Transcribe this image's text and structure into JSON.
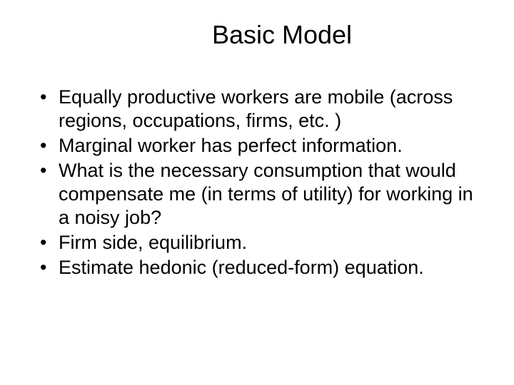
{
  "slide": {
    "title": "Basic Model",
    "bullets": [
      "Equally productive workers are mobile (across regions, occupations, firms, etc. )",
      "Marginal worker has perfect information.",
      "What is the necessary consumption that would compensate me (in terms of utility) for working in a noisy job?",
      "Firm side, equilibrium.",
      "Estimate hedonic (reduced-form) equation."
    ],
    "title_fontsize": 36,
    "body_fontsize": 27,
    "text_color": "#000000",
    "background_color": "#ffffff"
  }
}
